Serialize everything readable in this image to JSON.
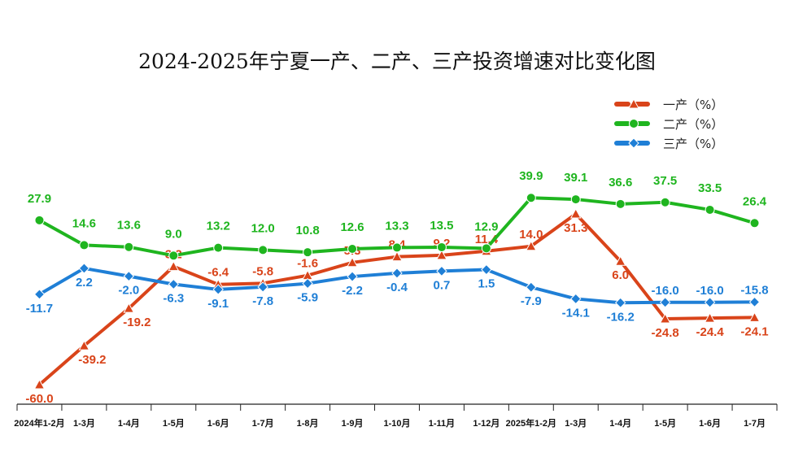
{
  "chart_data": {
    "type": "line",
    "title": "2024-2025年宁夏一产、二产、三产投资增速对比变化图",
    "xlabel": "",
    "ylabel": "",
    "ylim": [
      -70,
      75
    ],
    "grid": false,
    "legend_position": "top-right",
    "categories": [
      "2024年1-2月",
      "1-3月",
      "1-4月",
      "1-5月",
      "1-6月",
      "1-7月",
      "1-8月",
      "1-9月",
      "1-10月",
      "1-11月",
      "1-12月",
      "2025年1-2月",
      "1-3月",
      "1-4月",
      "1-5月",
      "1-6月",
      "1-7月"
    ],
    "series": [
      {
        "name": "一产（%）",
        "color": "#d9441a",
        "marker": "triangle",
        "values": [
          -60.0,
          -39.2,
          -19.2,
          3.2,
          -6.4,
          -5.8,
          -1.6,
          5.3,
          8.4,
          9.2,
          11.4,
          14.0,
          31.3,
          6.0,
          -24.8,
          -24.4,
          -24.1
        ]
      },
      {
        "name": "二产（%）",
        "color": "#1fb51f",
        "marker": "circle",
        "values": [
          27.9,
          14.6,
          13.6,
          9.0,
          13.2,
          12.0,
          10.8,
          12.6,
          13.3,
          13.5,
          12.9,
          39.9,
          39.1,
          36.6,
          37.5,
          33.5,
          26.4
        ]
      },
      {
        "name": "三产（%）",
        "color": "#1f7fd6",
        "marker": "diamond",
        "values": [
          -11.7,
          2.2,
          -2.0,
          -6.3,
          -9.1,
          -7.8,
          -5.9,
          -2.2,
          -0.4,
          0.7,
          1.5,
          -7.9,
          -14.1,
          -16.2,
          -16.0,
          -16.0,
          -15.8
        ]
      }
    ]
  }
}
